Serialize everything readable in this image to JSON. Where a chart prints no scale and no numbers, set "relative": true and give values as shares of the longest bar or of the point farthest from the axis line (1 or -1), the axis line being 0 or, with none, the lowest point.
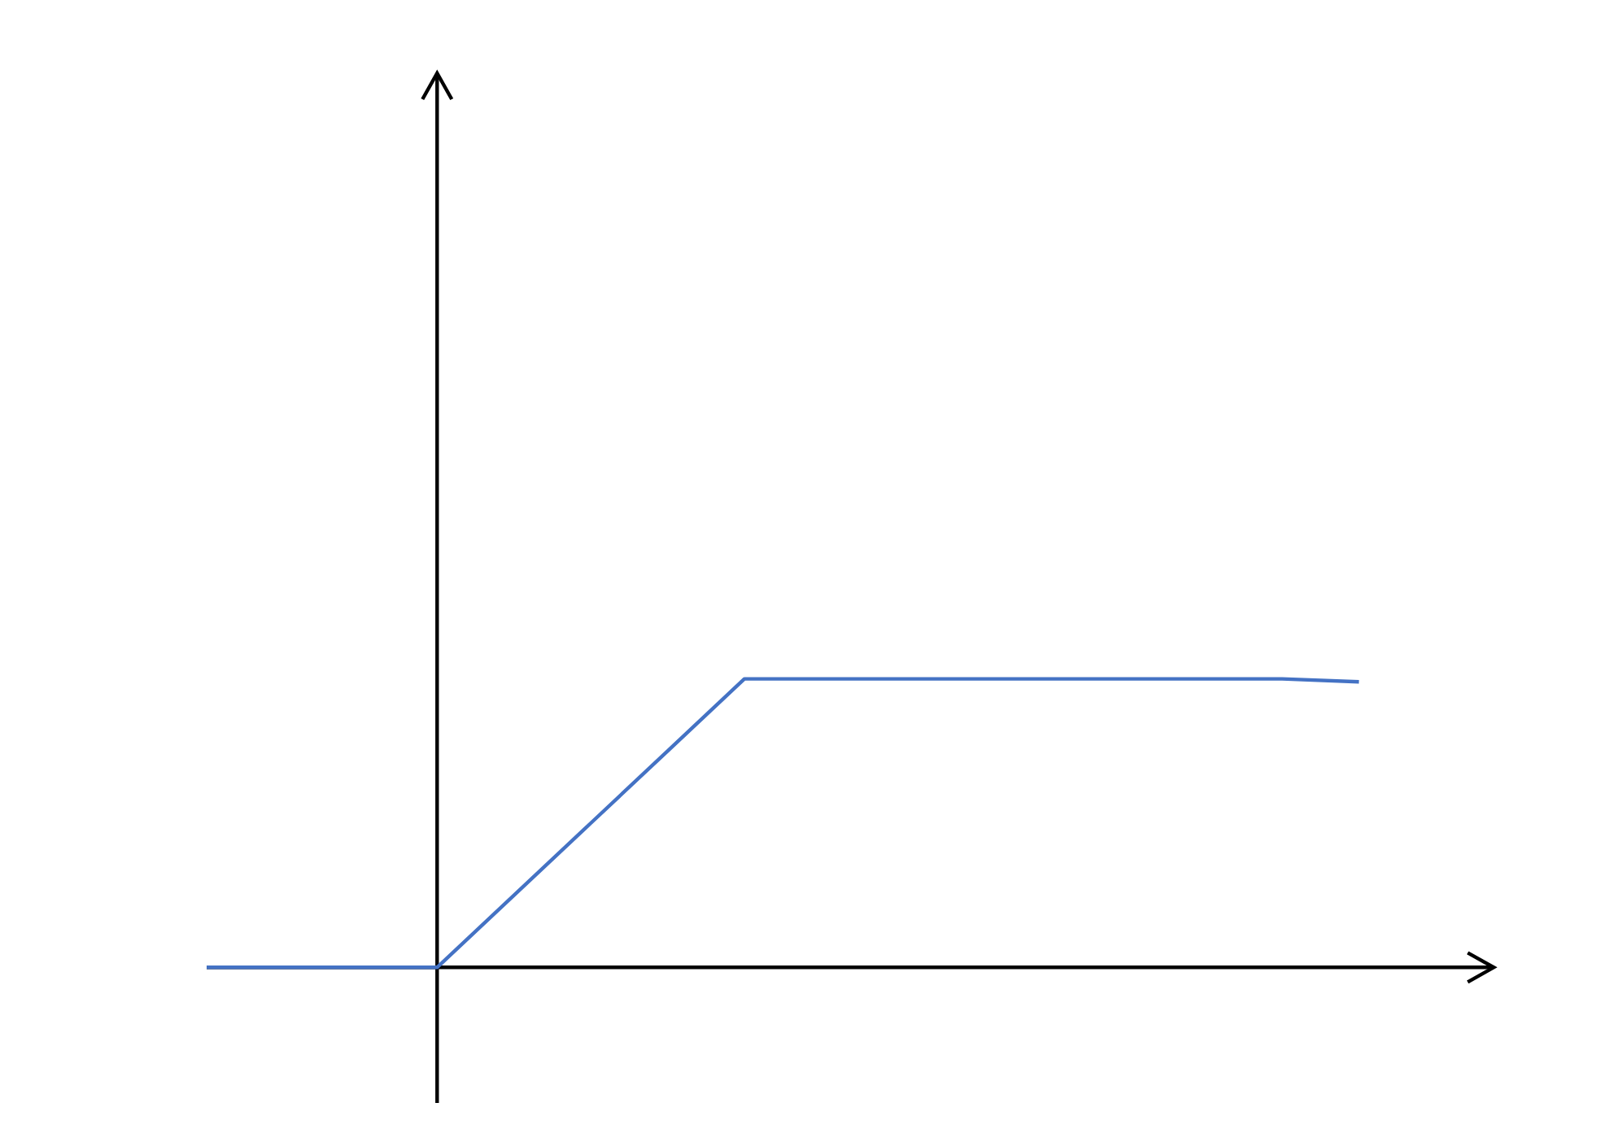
{
  "chart_data": {
    "type": "line",
    "relative": true,
    "color": "#4472c4",
    "categories": [
      null,
      null,
      null,
      null,
      null,
      null,
      null,
      null,
      null,
      null,
      null,
      null,
      null,
      null,
      null,
      null
    ],
    "values": [
      0,
      0,
      0,
      0,
      0.25,
      0.5,
      0.75,
      1,
      1,
      1,
      1,
      1,
      1,
      1,
      1,
      0.99
    ]
  }
}
